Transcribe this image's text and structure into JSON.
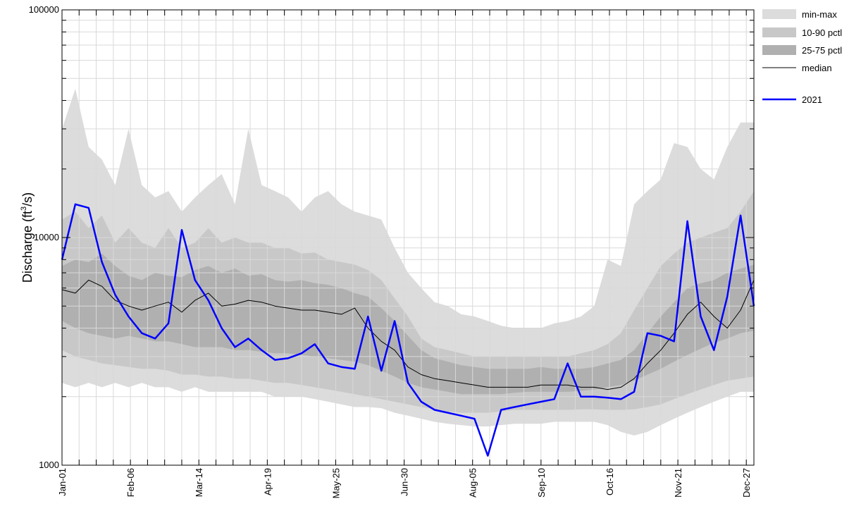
{
  "chart_data": {
    "type": "area",
    "title": "",
    "xlabel": "",
    "ylabel": "Discharge (ft³/s)",
    "ylabel_parts": {
      "pre": "Discharge (ft",
      "sup": "3",
      "post": "/s)"
    },
    "yscale": "log",
    "ylim": [
      1000,
      100000
    ],
    "xlim_days": [
      1,
      365
    ],
    "y_ticks": [
      1000,
      10000,
      100000
    ],
    "y_tick_labels": [
      "1000",
      "10000",
      "100000"
    ],
    "x_ticks": [
      {
        "day": 1,
        "label": "Jan-01"
      },
      {
        "day": 37,
        "label": "Feb-06"
      },
      {
        "day": 73,
        "label": "Mar-14"
      },
      {
        "day": 109,
        "label": "Apr-19"
      },
      {
        "day": 145,
        "label": "May-25"
      },
      {
        "day": 181,
        "label": "Jun-30"
      },
      {
        "day": 217,
        "label": "Aug-05"
      },
      {
        "day": 253,
        "label": "Sep-10"
      },
      {
        "day": 289,
        "label": "Oct-16"
      },
      {
        "day": 325,
        "label": "Nov-21"
      },
      {
        "day": 361,
        "label": "Dec-27"
      }
    ],
    "grid": true,
    "legend_position": "right",
    "legend": [
      {
        "label": "min-max",
        "kind": "band",
        "color": "#dcdcdc"
      },
      {
        "label": "10-90 pctl",
        "kind": "band",
        "color": "#c8c8c8"
      },
      {
        "label": "25-75 pctl",
        "kind": "band",
        "color": "#b0b0b0"
      },
      {
        "label": "median",
        "kind": "line",
        "color": "#000000"
      },
      {
        "label": "2021",
        "kind": "line",
        "color": "#0000ff"
      }
    ],
    "day": [
      1,
      8,
      15,
      22,
      29,
      36,
      43,
      50,
      57,
      64,
      71,
      78,
      85,
      92,
      99,
      106,
      113,
      120,
      127,
      134,
      141,
      148,
      155,
      162,
      169,
      176,
      183,
      190,
      197,
      204,
      211,
      218,
      225,
      232,
      239,
      246,
      253,
      260,
      267,
      274,
      281,
      288,
      295,
      302,
      309,
      316,
      323,
      330,
      337,
      344,
      351,
      358,
      365
    ],
    "series": [
      {
        "name": "min",
        "values": [
          2300,
          2200,
          2300,
          2200,
          2300,
          2200,
          2300,
          2200,
          2200,
          2100,
          2200,
          2100,
          2100,
          2100,
          2100,
          2100,
          2000,
          2000,
          2000,
          1950,
          1900,
          1850,
          1800,
          1800,
          1780,
          1700,
          1650,
          1600,
          1550,
          1520,
          1500,
          1480,
          1480,
          1500,
          1520,
          1520,
          1520,
          1550,
          1550,
          1550,
          1550,
          1500,
          1400,
          1350,
          1400,
          1500,
          1600,
          1700,
          1800,
          1900,
          2000,
          2100,
          2100
        ]
      },
      {
        "name": "p10",
        "values": [
          3200,
          3000,
          2900,
          2800,
          2750,
          2700,
          2650,
          2650,
          2600,
          2500,
          2500,
          2450,
          2450,
          2400,
          2400,
          2350,
          2300,
          2300,
          2250,
          2200,
          2150,
          2100,
          2050,
          2000,
          1950,
          1900,
          1850,
          1800,
          1760,
          1720,
          1700,
          1700,
          1700,
          1720,
          1750,
          1750,
          1750,
          1750,
          1750,
          1760,
          1760,
          1750,
          1750,
          1760,
          1800,
          1850,
          1950,
          2050,
          2150,
          2250,
          2350,
          2400,
          2450
        ]
      },
      {
        "name": "p25",
        "values": [
          4300,
          4000,
          3800,
          3700,
          3600,
          3700,
          3600,
          3500,
          3500,
          3400,
          3300,
          3300,
          3300,
          3200,
          3200,
          3150,
          3100,
          3100,
          3050,
          3000,
          2950,
          2900,
          2850,
          2750,
          2600,
          2450,
          2300,
          2200,
          2150,
          2100,
          2050,
          2050,
          2050,
          2050,
          2080,
          2100,
          2100,
          2100,
          2100,
          2120,
          2150,
          2200,
          2250,
          2350,
          2500,
          2650,
          2850,
          3050,
          3250,
          3450,
          3600,
          3800,
          3900
        ]
      },
      {
        "name": "median",
        "values": [
          5900,
          5700,
          6500,
          6100,
          5300,
          5000,
          4800,
          5000,
          5200,
          4700,
          5300,
          5700,
          5000,
          5100,
          5300,
          5200,
          5000,
          4900,
          4800,
          4800,
          4700,
          4600,
          4900,
          4000,
          3500,
          3200,
          2700,
          2500,
          2400,
          2350,
          2300,
          2250,
          2200,
          2200,
          2200,
          2200,
          2250,
          2250,
          2250,
          2200,
          2200,
          2150,
          2200,
          2400,
          2800,
          3200,
          3800,
          4600,
          5200,
          4500,
          4000,
          4800,
          6500
        ]
      },
      {
        "name": "p75",
        "values": [
          7500,
          8000,
          7800,
          8500,
          7500,
          6800,
          6500,
          7000,
          6800,
          6700,
          7200,
          7500,
          7000,
          7300,
          6800,
          6900,
          6500,
          6400,
          6500,
          6300,
          6200,
          6000,
          5700,
          5500,
          4900,
          4300,
          3700,
          3200,
          2950,
          2850,
          2750,
          2700,
          2650,
          2650,
          2650,
          2650,
          2700,
          2650,
          2650,
          2650,
          2700,
          2800,
          2900,
          3200,
          3800,
          4500,
          5200,
          6000,
          6300,
          6500,
          7000,
          7300,
          7600
        ]
      },
      {
        "name": "p90",
        "values": [
          12000,
          13000,
          11000,
          12500,
          9500,
          11000,
          9500,
          9000,
          11000,
          9000,
          9500,
          11000,
          9500,
          10000,
          9500,
          9500,
          9000,
          9000,
          8500,
          8600,
          8000,
          7800,
          7600,
          7200,
          6500,
          5400,
          4500,
          3600,
          3300,
          3200,
          3100,
          3000,
          3000,
          3000,
          3000,
          3000,
          3000,
          3000,
          3000,
          3100,
          3200,
          3400,
          3800,
          4800,
          6000,
          7500,
          8500,
          9500,
          10000,
          10500,
          11000,
          13000,
          16000
        ]
      },
      {
        "name": "max",
        "values": [
          30000,
          45000,
          25000,
          22000,
          17000,
          30000,
          17000,
          15000,
          16000,
          13000,
          15000,
          17000,
          19000,
          14000,
          30000,
          17000,
          16000,
          15000,
          13000,
          15000,
          16000,
          14000,
          13000,
          12500,
          12000,
          9000,
          7000,
          6000,
          5200,
          5000,
          4600,
          4500,
          4300,
          4100,
          4000,
          4000,
          4000,
          4200,
          4300,
          4500,
          5000,
          8000,
          7500,
          14000,
          16000,
          18000,
          26000,
          25000,
          20000,
          18000,
          25000,
          32000,
          32000
        ]
      },
      {
        "name": "2021",
        "values": [
          8000,
          14000,
          13500,
          7800,
          5600,
          4500,
          3800,
          3600,
          4200,
          10800,
          6500,
          5300,
          4000,
          3300,
          3600,
          3200,
          2900,
          2950,
          3100,
          3400,
          2800,
          2700,
          2650,
          4500,
          2600,
          4300,
          2300,
          1900,
          1750,
          1700,
          1650,
          1600,
          1100,
          1750,
          1800,
          1850,
          1900,
          1950,
          2800,
          2000,
          2000,
          1980,
          1950,
          2100,
          3800,
          3700,
          3500,
          11800,
          4500,
          3200,
          5500,
          12500,
          5000
        ]
      }
    ]
  }
}
